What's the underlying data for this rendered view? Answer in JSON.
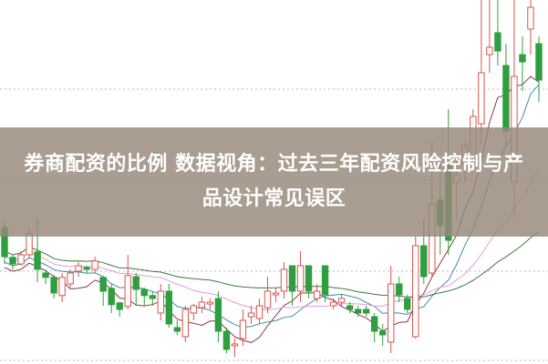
{
  "banner": {
    "title": "券商配资的比例 数据视角：过去三年配资风险控制与产品设计常见误区"
  },
  "chart_data": {
    "type": "candlestick",
    "title": "",
    "xlabel": "",
    "ylabel": "",
    "ylim": [
      0,
      100
    ],
    "grid": "horizontal dotted",
    "colors": {
      "up": "#d9534f",
      "down": "#2e9e3e",
      "grid": "#bbbbbb",
      "banner": "#968778"
    },
    "moving_average_colors": [
      "#8b3a4a",
      "#3b8fa8",
      "#e49ae0",
      "#3a7a3a"
    ],
    "candles": [
      [
        37.5,
        29.5,
        38.8,
        27.5
      ],
      [
        29.3,
        27.5,
        30,
        26
      ],
      [
        27.5,
        30,
        31,
        27
      ],
      [
        30,
        35.8,
        37.5,
        29
      ],
      [
        30.8,
        26,
        40,
        22.5
      ],
      [
        25,
        23.8,
        26,
        22
      ],
      [
        23.8,
        19.5,
        24.5,
        18
      ],
      [
        18.8,
        23.8,
        25,
        17
      ],
      [
        22,
        25,
        26,
        21
      ],
      [
        25.5,
        27,
        28,
        24
      ],
      [
        26.5,
        26,
        27,
        25
      ],
      [
        26,
        28.3,
        29.5,
        25
      ],
      [
        23.8,
        20,
        24,
        16
      ],
      [
        20.8,
        16.3,
        22,
        14
      ],
      [
        16.8,
        15,
        17,
        13
      ],
      [
        15.8,
        24.3,
        30,
        15
      ],
      [
        24,
        20.5,
        25,
        16
      ],
      [
        20.5,
        18.8,
        21,
        16
      ],
      [
        18.8,
        18,
        20,
        16
      ],
      [
        14,
        20,
        22,
        12
      ],
      [
        20,
        11,
        22,
        10
      ],
      [
        10,
        9,
        12,
        8
      ],
      [
        7.5,
        15,
        16,
        6
      ],
      [
        14,
        16,
        16.5,
        12
      ],
      [
        15.5,
        17,
        18.5,
        14
      ],
      [
        16.5,
        17,
        18,
        15
      ],
      [
        18,
        9,
        20,
        6
      ],
      [
        9,
        4,
        10,
        3
      ],
      [
        5,
        5.5,
        7,
        2
      ],
      [
        7,
        12,
        15,
        5
      ],
      [
        13,
        14,
        16,
        11
      ],
      [
        12.5,
        16,
        18,
        11
      ],
      [
        15.5,
        20,
        24,
        14
      ],
      [
        19,
        19.5,
        21,
        17
      ],
      [
        20,
        26,
        28,
        18
      ],
      [
        27,
        20,
        27,
        16
      ],
      [
        20,
        27,
        31,
        17
      ],
      [
        27,
        20,
        27,
        18
      ],
      [
        18,
        20,
        22,
        17
      ],
      [
        27,
        19,
        27,
        17
      ],
      [
        16,
        17,
        18,
        15
      ],
      [
        17,
        18,
        19,
        16
      ],
      [
        16,
        15,
        17,
        14
      ],
      [
        15,
        14,
        16,
        13
      ],
      [
        15,
        14,
        16,
        13
      ],
      [
        13,
        9,
        14,
        6
      ],
      [
        9,
        8,
        11,
        5
      ],
      [
        6,
        22,
        27,
        3
      ],
      [
        22,
        19,
        24,
        17
      ],
      [
        18,
        15,
        19,
        14
      ],
      [
        7.5,
        32.5,
        35,
        7
      ],
      [
        32.5,
        24,
        40,
        22
      ],
      [
        25,
        44,
        61,
        24
      ],
      [
        45,
        38,
        55,
        30
      ],
      [
        55,
        34,
        70,
        30
      ],
      [
        50,
        52,
        57,
        40
      ],
      [
        55,
        60,
        61,
        50
      ],
      [
        56,
        68,
        70,
        54
      ],
      [
        66,
        80,
        100,
        60
      ],
      [
        85,
        87,
        100,
        80
      ],
      [
        91,
        86,
        100,
        82
      ],
      [
        82,
        64,
        88,
        60
      ],
      [
        50,
        79,
        100,
        40
      ],
      [
        85,
        83,
        90,
        75
      ],
      [
        92,
        98,
        100,
        85
      ],
      [
        88,
        78,
        90,
        72
      ]
    ]
  }
}
